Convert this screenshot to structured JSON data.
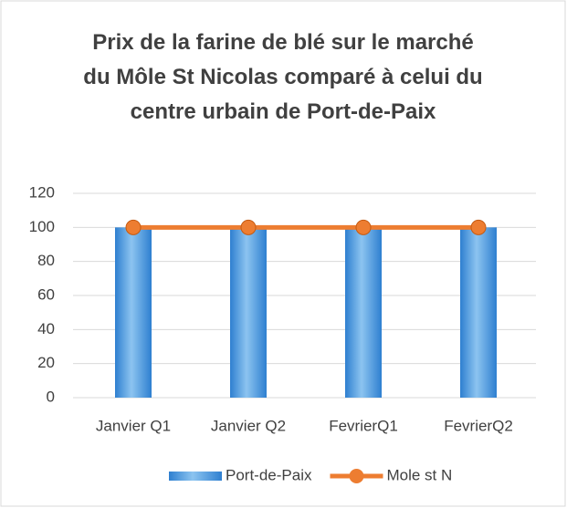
{
  "chart_data": {
    "type": "bar",
    "title": "Prix de la farine de blé sur le marché du Môle St Nicolas comparé à celui du centre urbain de Port-de-Paix",
    "categories": [
      "Janvier Q1",
      "Janvier Q2",
      "FevrierQ1",
      "FevrierQ2"
    ],
    "series": [
      {
        "name": "Port-de-Paix",
        "type": "bar",
        "color": "#2e7fd0",
        "values": [
          100,
          100,
          100,
          100
        ]
      },
      {
        "name": "Mole st N",
        "type": "line",
        "color": "#ed7d31",
        "values": [
          100,
          100,
          100,
          100
        ]
      }
    ],
    "ylim": [
      0,
      120
    ],
    "yticks": [
      0,
      20,
      40,
      60,
      80,
      100,
      120
    ],
    "grid": true,
    "legend": "bottom"
  }
}
